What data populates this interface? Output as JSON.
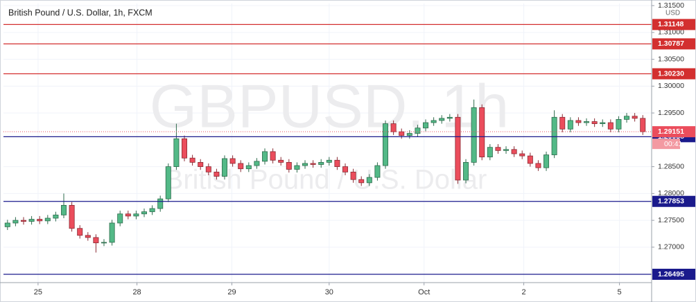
{
  "chart_data": {
    "type": "candlestick",
    "title": "British Pound / U.S. Dollar, 1h, FXCM",
    "watermark": {
      "symbol": "GBPUSD, 1h",
      "name": "British Pound / U.S. Dollar"
    },
    "currency": "USD",
    "countdown": "00:41",
    "up_color": "#53b987",
    "down_color": "#eb4d5c",
    "grid": true,
    "open": [
      1.2738,
      1.2745,
      1.275,
      1.2748,
      1.2752,
      1.2749,
      1.2754,
      1.276,
      1.2778,
      1.2735,
      1.2722,
      1.2718,
      1.2708,
      1.2709,
      1.2745,
      1.2762,
      1.2758,
      1.2762,
      1.2766,
      1.2772,
      1.279,
      1.285,
      1.2902,
      1.2866,
      1.2858,
      1.285,
      1.284,
      1.2832,
      1.2865,
      1.2856,
      1.2846,
      1.2852,
      1.286,
      1.2878,
      1.2862,
      1.2858,
      1.2845,
      1.2852,
      1.2856,
      1.2854,
      1.2858,
      1.2862,
      1.285,
      1.284,
      1.2826,
      1.282,
      1.283,
      1.2852,
      1.293,
      1.2915,
      1.2908,
      1.2912,
      1.2922,
      1.2932,
      1.2936,
      1.294,
      1.2942,
      1.2825,
      1.2858,
      1.296,
      1.2868,
      1.2886,
      1.288,
      1.2882,
      1.2874,
      1.287,
      1.2856,
      1.2848,
      1.2872,
      1.2942,
      1.292,
      1.2936,
      1.2932,
      1.2934,
      1.293,
      1.2932,
      1.292,
      1.2938,
      1.2944,
      1.294
    ],
    "high": [
      1.2751,
      1.2756,
      1.2756,
      1.2758,
      1.2758,
      1.276,
      1.2766,
      1.28,
      1.2784,
      1.2741,
      1.2728,
      1.2724,
      1.2715,
      1.2751,
      1.2768,
      1.2768,
      1.2768,
      1.2772,
      1.2778,
      1.2796,
      1.2856,
      1.293,
      1.2908,
      1.2872,
      1.2864,
      1.2856,
      1.2846,
      1.2871,
      1.2871,
      1.2862,
      1.2858,
      1.2866,
      1.2884,
      1.2884,
      1.2868,
      1.2864,
      1.2858,
      1.2862,
      1.2862,
      1.2864,
      1.2868,
      1.2868,
      1.2856,
      1.2846,
      1.2832,
      1.2836,
      1.2858,
      1.2936,
      1.2936,
      1.2921,
      1.2918,
      1.2928,
      1.2938,
      1.2942,
      1.2946,
      1.2948,
      1.2948,
      1.2864,
      1.2975,
      1.2966,
      1.2892,
      1.2892,
      1.2888,
      1.2888,
      1.288,
      1.2876,
      1.2862,
      1.2878,
      1.2955,
      1.2948,
      1.2942,
      1.2942,
      1.294,
      1.294,
      1.2938,
      1.2938,
      1.2944,
      1.295,
      1.295,
      1.2946
    ],
    "low": [
      1.2732,
      1.2739,
      1.2742,
      1.2742,
      1.2743,
      1.2743,
      1.2748,
      1.2754,
      1.2729,
      1.2716,
      1.2712,
      1.269,
      1.2702,
      1.2703,
      1.2739,
      1.2752,
      1.2752,
      1.2756,
      1.276,
      1.2766,
      1.2784,
      1.2844,
      1.286,
      1.2852,
      1.2844,
      1.2834,
      1.2826,
      1.2826,
      1.285,
      1.284,
      1.284,
      1.2846,
      1.2854,
      1.2856,
      1.2852,
      1.2839,
      1.2839,
      1.2846,
      1.2848,
      1.2848,
      1.2852,
      1.2844,
      1.2834,
      1.282,
      1.2814,
      1.2814,
      1.2824,
      1.2846,
      1.2909,
      1.2902,
      1.2902,
      1.2906,
      1.2916,
      1.2926,
      1.293,
      1.2934,
      1.2818,
      1.2819,
      1.2852,
      1.2862,
      1.2862,
      1.2874,
      1.2874,
      1.2868,
      1.2864,
      1.285,
      1.2842,
      1.2842,
      1.2866,
      1.2914,
      1.2914,
      1.2926,
      1.2926,
      1.2924,
      1.2924,
      1.2914,
      1.2914,
      1.2932,
      1.2934,
      1.2909
    ],
    "close": [
      1.2745,
      1.275,
      1.2748,
      1.2752,
      1.2749,
      1.2754,
      1.276,
      1.2778,
      1.2735,
      1.2722,
      1.2718,
      1.2708,
      1.2709,
      1.2745,
      1.2762,
      1.2758,
      1.2762,
      1.2766,
      1.2772,
      1.279,
      1.285,
      1.2902,
      1.2866,
      1.2858,
      1.285,
      1.284,
      1.2832,
      1.2865,
      1.2856,
      1.2846,
      1.2852,
      1.286,
      1.2878,
      1.2862,
      1.2858,
      1.2845,
      1.2852,
      1.2856,
      1.2854,
      1.2858,
      1.2862,
      1.285,
      1.284,
      1.2826,
      1.282,
      1.283,
      1.2852,
      1.293,
      1.2915,
      1.2908,
      1.2912,
      1.2922,
      1.2932,
      1.2936,
      1.294,
      1.2942,
      1.2825,
      1.2858,
      1.296,
      1.2868,
      1.2886,
      1.288,
      1.2882,
      1.2874,
      1.287,
      1.2856,
      1.2848,
      1.2872,
      1.2942,
      1.292,
      1.2936,
      1.2932,
      1.2934,
      1.293,
      1.2932,
      1.292,
      1.2938,
      1.2944,
      1.294,
      1.29151
    ],
    "xlim": [
      0,
      80.6
    ],
    "xticks": [
      {
        "value": 4.3,
        "label": "25"
      },
      {
        "value": 16.6,
        "label": "28"
      },
      {
        "value": 28.4,
        "label": "29"
      },
      {
        "value": 40.5,
        "label": "30"
      },
      {
        "value": 52.3,
        "label": "Oct"
      },
      {
        "value": 64.7,
        "label": "2"
      },
      {
        "value": 76.6,
        "label": "5"
      }
    ],
    "ylim": [
      1.2634,
      1.3154
    ],
    "yticks": [
      {
        "value": 1.315,
        "label": "1.31500"
      },
      {
        "value": 1.31,
        "label": "1.31000"
      },
      {
        "value": 1.305,
        "label": "1.30500"
      },
      {
        "value": 1.3,
        "label": "1.30000"
      },
      {
        "value": 1.295,
        "label": "1.29500"
      },
      {
        "value": 1.285,
        "label": "1.28500"
      },
      {
        "value": 1.28,
        "label": "1.28000"
      },
      {
        "value": 1.275,
        "label": "1.27500"
      },
      {
        "value": 1.27,
        "label": "1.27000"
      }
    ],
    "levels": [
      {
        "value": 1.31148,
        "color": "#d32f2f"
      },
      {
        "value": 1.30787,
        "color": "#d32f2f"
      },
      {
        "value": 1.3023,
        "label": "1.30230",
        "color": "#d32f2f"
      },
      {
        "value": 1.29058,
        "color": "#1a1a8c"
      },
      {
        "value": 1.27853,
        "color": "#1a1a8c"
      },
      {
        "value": 1.26495,
        "color": "#1a1a8c"
      }
    ]
  }
}
